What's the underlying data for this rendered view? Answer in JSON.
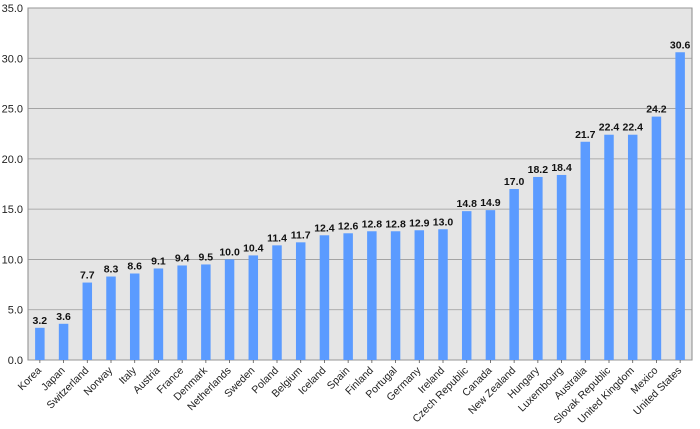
{
  "chart_data": {
    "type": "bar",
    "title": "",
    "xlabel": "",
    "ylabel": "",
    "ylim": [
      0,
      35
    ],
    "yticks": [
      "0.0",
      "5.0",
      "10.0",
      "15.0",
      "20.0",
      "25.0",
      "30.0",
      "35.0"
    ],
    "grid": true,
    "legend": "none",
    "colors": {
      "bar": "#5b9bff",
      "plot_bg": "#e5e5e5",
      "grid": "#9a9a9a"
    },
    "categories": [
      "Korea",
      "Japan",
      "Switzerland",
      "Norway",
      "Italy",
      "Austria",
      "France",
      "Denmark",
      "Netherlands",
      "Sweden",
      "Poland",
      "Belgium",
      "Iceland",
      "Spain",
      "Finland",
      "Portugal",
      "Germany",
      "Ireland",
      "Czech Republic",
      "Canada",
      "New Zealand",
      "Hungary",
      "Luxembourg",
      "Australia",
      "Slovak Republic",
      "United Kingdom",
      "Mexico",
      "United States"
    ],
    "values": [
      3.2,
      3.6,
      7.7,
      8.3,
      8.6,
      9.1,
      9.4,
      9.5,
      10.0,
      10.4,
      11.4,
      11.7,
      12.4,
      12.6,
      12.8,
      12.8,
      12.9,
      13.0,
      14.8,
      14.9,
      17.0,
      18.2,
      18.4,
      21.7,
      22.4,
      22.4,
      24.2,
      30.6
    ],
    "data_labels": [
      "3.2",
      "3.6",
      "7.7",
      "8.3",
      "8.6",
      "9.1",
      "9.4",
      "9.5",
      "10.0",
      "10.4",
      "11.4",
      "11.7",
      "12.4",
      "12.6",
      "12.8",
      "12.8",
      "12.9",
      "13.0",
      "14.8",
      "14.9",
      "17.0",
      "18.2",
      "18.4",
      "21.7",
      "22.4",
      "22.4",
      "24.2",
      "30.6"
    ]
  }
}
